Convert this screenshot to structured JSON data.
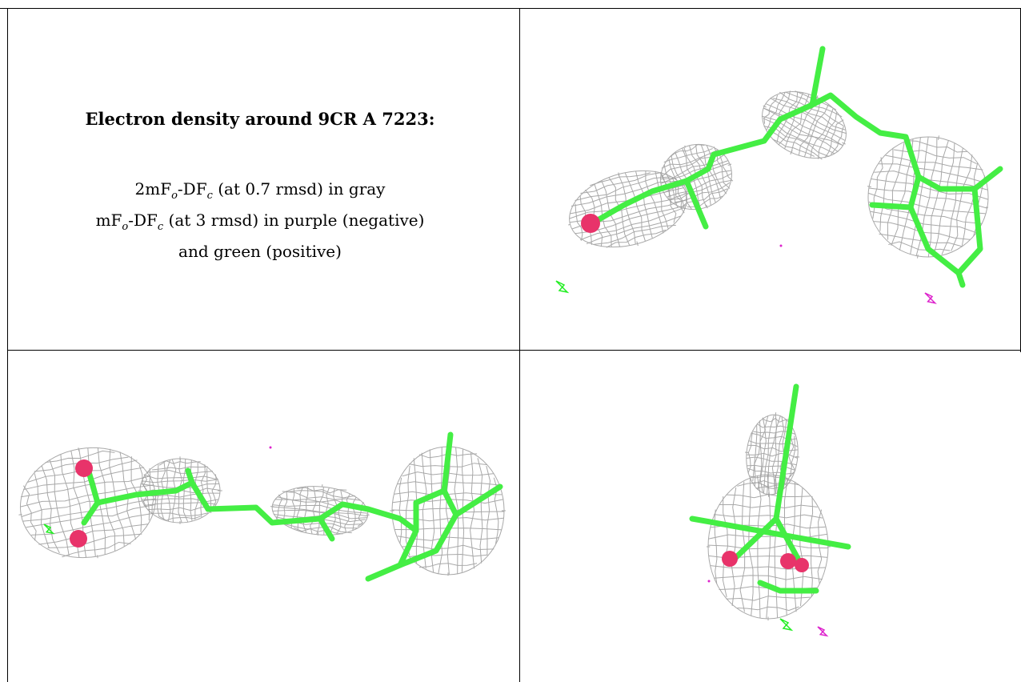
{
  "title": "Electron density around 9CR A 7223:",
  "legend": {
    "line1_prefix": "2mF",
    "line1_mid": "-DF",
    "line1_suffix": " (at 0.7 rmsd) in gray",
    "line2_prefix": "mF",
    "line2_mid": "-DF",
    "line2_suffix": " (at 3 rmsd) in purple (negative)",
    "line3": "and green (positive)",
    "sub_o": "o",
    "sub_c": "c"
  },
  "colors": {
    "mesh_2fofc": "#9a9a9a",
    "diff_positive": "#22ee22",
    "diff_negative": "#dd22cc",
    "carbon": "#44ee44",
    "oxygen": "#e8336a",
    "grid": "#000000"
  },
  "panels": [
    {
      "name": "view-top-right"
    },
    {
      "name": "view-bottom-left"
    },
    {
      "name": "view-bottom-right"
    }
  ]
}
